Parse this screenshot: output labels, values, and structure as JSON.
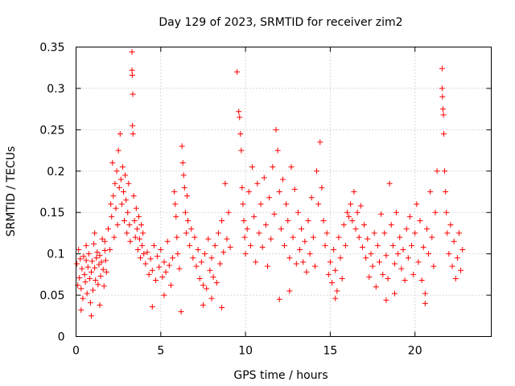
{
  "chart_data": {
    "type": "scatter",
    "title": "Day 129 of 2023, SRMTID for receiver zim2",
    "xlabel": "GPS time / hours",
    "ylabel": "SRMTID / TECUs",
    "xlim": [
      0,
      24.5
    ],
    "ylim": [
      0,
      0.35
    ],
    "xticks": [
      0,
      5,
      10,
      15,
      20
    ],
    "yticks": [
      0,
      0.05,
      0.1,
      0.15,
      0.2,
      0.25,
      0.3,
      0.35
    ],
    "xtick_labels": [
      "0",
      "5",
      "10",
      "15",
      "20"
    ],
    "ytick_labels": [
      "0",
      "0.05",
      "0.1",
      "0.15",
      "0.2",
      "0.25",
      "0.3",
      "0.35"
    ],
    "grid": true,
    "marker": "+",
    "color": "#ff0000",
    "series": [
      {
        "name": "SRMTID",
        "points": [
          [
            0.05,
            0.088
          ],
          [
            0.1,
            0.062
          ],
          [
            0.15,
            0.105
          ],
          [
            0.2,
            0.071
          ],
          [
            0.25,
            0.094
          ],
          [
            0.3,
            0.058
          ],
          [
            0.35,
            0.082
          ],
          [
            0.4,
            0.046
          ],
          [
            0.45,
            0.097
          ],
          [
            0.5,
            0.075
          ],
          [
            0.55,
            0.066
          ],
          [
            0.6,
            0.092
          ],
          [
            0.65,
            0.052
          ],
          [
            0.7,
            0.084
          ],
          [
            0.75,
            0.1
          ],
          [
            0.8,
            0.07
          ],
          [
            0.85,
            0.041
          ],
          [
            0.9,
            0.078
          ],
          [
            0.95,
            0.091
          ],
          [
            1.0,
            0.056
          ],
          [
            1.05,
            0.112
          ],
          [
            1.1,
            0.083
          ],
          [
            1.15,
            0.068
          ],
          [
            1.2,
            0.095
          ],
          [
            1.25,
            0.102
          ],
          [
            1.3,
            0.063
          ],
          [
            1.35,
            0.087
          ],
          [
            1.4,
            0.098
          ],
          [
            1.45,
            0.073
          ],
          [
            1.5,
            0.09
          ],
          [
            1.55,
            0.118
          ],
          [
            1.6,
            0.081
          ],
          [
            1.65,
            0.061
          ],
          [
            1.7,
            0.104
          ],
          [
            1.75,
            0.092
          ],
          [
            1.8,
            0.078
          ],
          [
            0.3,
            0.032
          ],
          [
            0.9,
            0.025
          ],
          [
            1.4,
            0.038
          ],
          [
            0.6,
            0.11
          ],
          [
            1.1,
            0.125
          ],
          [
            1.7,
            0.115
          ],
          [
            1.9,
            0.13
          ],
          [
            2.0,
            0.105
          ],
          [
            2.05,
            0.16
          ],
          [
            2.1,
            0.145
          ],
          [
            2.15,
            0.21
          ],
          [
            2.2,
            0.17
          ],
          [
            2.25,
            0.12
          ],
          [
            2.3,
            0.185
          ],
          [
            2.35,
            0.155
          ],
          [
            2.4,
            0.2
          ],
          [
            2.45,
            0.135
          ],
          [
            2.5,
            0.225
          ],
          [
            2.55,
            0.18
          ],
          [
            2.6,
            0.245
          ],
          [
            2.65,
            0.19
          ],
          [
            2.7,
            0.16
          ],
          [
            2.75,
            0.205
          ],
          [
            2.8,
            0.175
          ],
          [
            2.85,
            0.14
          ],
          [
            2.9,
            0.195
          ],
          [
            2.95,
            0.165
          ],
          [
            3.0,
            0.125
          ],
          [
            3.05,
            0.15
          ],
          [
            3.1,
            0.185
          ],
          [
            3.15,
            0.135
          ],
          [
            3.2,
            0.115
          ],
          [
            3.3,
            0.344
          ],
          [
            3.3,
            0.322
          ],
          [
            3.32,
            0.316
          ],
          [
            3.35,
            0.293
          ],
          [
            3.33,
            0.255
          ],
          [
            3.36,
            0.245
          ],
          [
            3.4,
            0.17
          ],
          [
            3.45,
            0.14
          ],
          [
            3.5,
            0.12
          ],
          [
            3.55,
            0.155
          ],
          [
            3.6,
            0.13
          ],
          [
            3.65,
            0.105
          ],
          [
            3.7,
            0.145
          ],
          [
            3.75,
            0.118
          ],
          [
            3.8,
            0.095
          ],
          [
            3.85,
            0.135
          ],
          [
            3.9,
            0.11
          ],
          [
            3.95,
            0.125
          ],
          [
            4.0,
            0.1
          ],
          [
            4.1,
            0.088
          ],
          [
            4.2,
            0.102
          ],
          [
            4.3,
            0.075
          ],
          [
            4.4,
            0.094
          ],
          [
            4.5,
            0.08
          ],
          [
            4.6,
            0.11
          ],
          [
            4.7,
            0.068
          ],
          [
            4.8,
            0.097
          ],
          [
            4.9,
            0.084
          ],
          [
            5.0,
            0.105
          ],
          [
            5.1,
            0.072
          ],
          [
            5.2,
            0.09
          ],
          [
            5.3,
            0.078
          ],
          [
            5.4,
            0.115
          ],
          [
            5.5,
            0.086
          ],
          [
            5.6,
            0.062
          ],
          [
            5.7,
            0.095
          ],
          [
            5.8,
            0.175
          ],
          [
            5.85,
            0.16
          ],
          [
            5.9,
            0.145
          ],
          [
            5.95,
            0.12
          ],
          [
            6.0,
            0.1
          ],
          [
            6.1,
            0.082
          ],
          [
            4.5,
            0.036
          ],
          [
            5.2,
            0.05
          ],
          [
            6.2,
            0.03
          ],
          [
            6.25,
            0.23
          ],
          [
            6.3,
            0.21
          ],
          [
            6.35,
            0.195
          ],
          [
            6.4,
            0.18
          ],
          [
            6.45,
            0.15
          ],
          [
            6.5,
            0.125
          ],
          [
            6.55,
            0.17
          ],
          [
            6.6,
            0.14
          ],
          [
            6.7,
            0.11
          ],
          [
            6.8,
            0.13
          ],
          [
            6.9,
            0.095
          ],
          [
            7.0,
            0.12
          ],
          [
            7.1,
            0.085
          ],
          [
            7.2,
            0.105
          ],
          [
            7.3,
            0.07
          ],
          [
            7.4,
            0.09
          ],
          [
            7.5,
            0.062
          ],
          [
            7.6,
            0.1
          ],
          [
            7.7,
            0.058
          ],
          [
            7.8,
            0.118
          ],
          [
            7.9,
            0.08
          ],
          [
            8.0,
            0.095
          ],
          [
            8.1,
            0.072
          ],
          [
            8.2,
            0.11
          ],
          [
            8.3,
            0.065
          ],
          [
            8.4,
            0.125
          ],
          [
            8.5,
            0.088
          ],
          [
            8.6,
            0.14
          ],
          [
            8.7,
            0.102
          ],
          [
            8.8,
            0.185
          ],
          [
            8.9,
            0.118
          ],
          [
            9.0,
            0.15
          ],
          [
            9.1,
            0.108
          ],
          [
            7.5,
            0.038
          ],
          [
            8.0,
            0.046
          ],
          [
            8.6,
            0.035
          ],
          [
            9.5,
            0.32
          ],
          [
            9.6,
            0.272
          ],
          [
            9.65,
            0.265
          ],
          [
            9.7,
            0.245
          ],
          [
            9.75,
            0.225
          ],
          [
            9.8,
            0.18
          ],
          [
            9.85,
            0.16
          ],
          [
            9.9,
            0.14
          ],
          [
            9.95,
            0.12
          ],
          [
            10.0,
            0.1
          ],
          [
            10.1,
            0.13
          ],
          [
            10.2,
            0.175
          ],
          [
            10.3,
            0.11
          ],
          [
            10.4,
            0.205
          ],
          [
            10.5,
            0.145
          ],
          [
            10.6,
            0.09
          ],
          [
            10.7,
            0.185
          ],
          [
            10.8,
            0.125
          ],
          [
            10.9,
            0.16
          ],
          [
            11.0,
            0.108
          ],
          [
            11.1,
            0.192
          ],
          [
            11.2,
            0.135
          ],
          [
            11.3,
            0.085
          ],
          [
            11.4,
            0.168
          ],
          [
            11.5,
            0.118
          ],
          [
            11.6,
            0.205
          ],
          [
            11.7,
            0.148
          ],
          [
            11.8,
            0.25
          ],
          [
            11.9,
            0.225
          ],
          [
            12.0,
            0.175
          ],
          [
            12.1,
            0.13
          ],
          [
            12.2,
            0.19
          ],
          [
            12.3,
            0.11
          ],
          [
            12.4,
            0.16
          ],
          [
            12.5,
            0.14
          ],
          [
            12.6,
            0.095
          ],
          [
            12.7,
            0.205
          ],
          [
            12.8,
            0.12
          ],
          [
            12.9,
            0.178
          ],
          [
            13.0,
            0.088
          ],
          [
            12.0,
            0.045
          ],
          [
            12.6,
            0.055
          ],
          [
            13.1,
            0.15
          ],
          [
            13.2,
            0.105
          ],
          [
            13.3,
            0.13
          ],
          [
            13.4,
            0.09
          ],
          [
            13.5,
            0.115
          ],
          [
            13.6,
            0.078
          ],
          [
            13.7,
            0.14
          ],
          [
            13.8,
            0.1
          ],
          [
            13.9,
            0.168
          ],
          [
            14.0,
            0.12
          ],
          [
            14.1,
            0.085
          ],
          [
            14.2,
            0.2
          ],
          [
            14.3,
            0.16
          ],
          [
            14.4,
            0.235
          ],
          [
            14.5,
            0.18
          ],
          [
            14.6,
            0.14
          ],
          [
            14.7,
            0.11
          ],
          [
            14.8,
            0.125
          ],
          [
            14.9,
            0.075
          ],
          [
            15.0,
            0.09
          ],
          [
            15.1,
            0.065
          ],
          [
            15.2,
            0.105
          ],
          [
            15.3,
            0.08
          ],
          [
            15.4,
            0.055
          ],
          [
            15.5,
            0.12
          ],
          [
            15.6,
            0.095
          ],
          [
            15.7,
            0.07
          ],
          [
            15.8,
            0.135
          ],
          [
            15.9,
            0.11
          ],
          [
            15.3,
            0.046
          ],
          [
            16.0,
            0.15
          ],
          [
            16.1,
            0.145
          ],
          [
            16.2,
            0.16
          ],
          [
            16.3,
            0.14
          ],
          [
            16.4,
            0.175
          ],
          [
            16.5,
            0.13
          ],
          [
            16.6,
            0.15
          ],
          [
            16.7,
            0.12
          ],
          [
            16.8,
            0.158
          ],
          [
            16.9,
            0.108
          ],
          [
            17.0,
            0.135
          ],
          [
            17.1,
            0.095
          ],
          [
            17.2,
            0.118
          ],
          [
            17.3,
            0.072
          ],
          [
            17.4,
            0.1
          ],
          [
            17.5,
            0.085
          ],
          [
            17.6,
            0.125
          ],
          [
            17.7,
            0.06
          ],
          [
            17.8,
            0.11
          ],
          [
            17.9,
            0.09
          ],
          [
            18.0,
            0.148
          ],
          [
            18.1,
            0.075
          ],
          [
            18.2,
            0.125
          ],
          [
            18.3,
            0.098
          ],
          [
            18.4,
            0.07
          ],
          [
            18.5,
            0.185
          ],
          [
            18.6,
            0.135
          ],
          [
            18.7,
            0.11
          ],
          [
            18.8,
            0.088
          ],
          [
            18.9,
            0.15
          ],
          [
            19.0,
            0.1
          ],
          [
            18.3,
            0.044
          ],
          [
            18.8,
            0.052
          ],
          [
            19.1,
            0.12
          ],
          [
            19.2,
            0.082
          ],
          [
            19.3,
            0.105
          ],
          [
            19.4,
            0.068
          ],
          [
            19.5,
            0.13
          ],
          [
            19.6,
            0.095
          ],
          [
            19.7,
            0.145
          ],
          [
            19.8,
            0.11
          ],
          [
            19.9,
            0.075
          ],
          [
            20.0,
            0.125
          ],
          [
            20.1,
            0.16
          ],
          [
            20.2,
            0.09
          ],
          [
            20.3,
            0.14
          ],
          [
            20.4,
            0.068
          ],
          [
            20.5,
            0.108
          ],
          [
            20.6,
            0.052
          ],
          [
            20.7,
            0.13
          ],
          [
            20.8,
            0.1
          ],
          [
            20.9,
            0.175
          ],
          [
            21.0,
            0.12
          ],
          [
            21.1,
            0.085
          ],
          [
            21.2,
            0.15
          ],
          [
            21.3,
            0.2
          ],
          [
            20.6,
            0.04
          ],
          [
            21.6,
            0.324
          ],
          [
            21.6,
            0.3
          ],
          [
            21.62,
            0.29
          ],
          [
            21.65,
            0.275
          ],
          [
            21.68,
            0.268
          ],
          [
            21.7,
            0.245
          ],
          [
            21.75,
            0.2
          ],
          [
            21.8,
            0.175
          ],
          [
            21.85,
            0.15
          ],
          [
            21.9,
            0.125
          ],
          [
            22.0,
            0.1
          ],
          [
            22.1,
            0.135
          ],
          [
            22.2,
            0.085
          ],
          [
            22.3,
            0.115
          ],
          [
            22.4,
            0.07
          ],
          [
            22.5,
            0.095
          ],
          [
            22.6,
            0.125
          ],
          [
            22.7,
            0.08
          ],
          [
            22.8,
            0.105
          ]
        ]
      }
    ]
  }
}
